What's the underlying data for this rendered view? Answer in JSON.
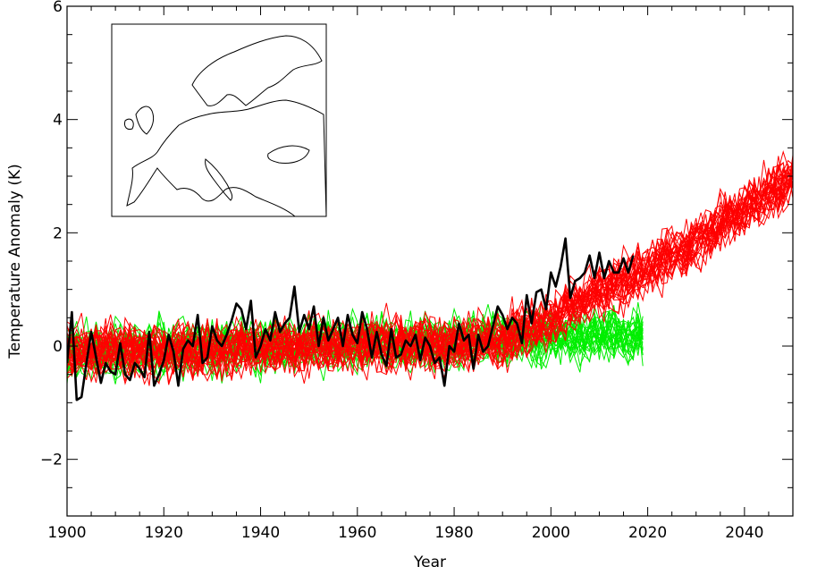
{
  "chart_data": {
    "type": "line",
    "title": "",
    "xlabel": "Year",
    "ylabel": "Temperature Anomaly (K)",
    "xlim": [
      1900,
      2050
    ],
    "ylim": [
      -3,
      6
    ],
    "x_ticks": [
      1900,
      1920,
      1940,
      1960,
      1980,
      2000,
      2020,
      2040
    ],
    "y_ticks": [
      -2,
      0,
      2,
      4,
      6
    ],
    "x_minor_step": 5,
    "y_minor_step": 0.5,
    "grid": false,
    "legend": "none",
    "inset": "map-of-europe-top-left",
    "colors": {
      "simulations": "#ff0000",
      "alternative": "#00ee00",
      "observed": "#000000"
    },
    "series": [
      {
        "role": "observed",
        "color": "#000000",
        "x": [
          1900,
          1901,
          1902,
          1903,
          1904,
          1905,
          1906,
          1907,
          1908,
          1909,
          1910,
          1911,
          1912,
          1913,
          1914,
          1915,
          1916,
          1917,
          1918,
          1919,
          1920,
          1921,
          1922,
          1923,
          1924,
          1925,
          1926,
          1927,
          1928,
          1929,
          1930,
          1931,
          1932,
          1933,
          1934,
          1935,
          1936,
          1937,
          1938,
          1939,
          1940,
          1941,
          1942,
          1943,
          1944,
          1945,
          1946,
          1947,
          1948,
          1949,
          1950,
          1951,
          1952,
          1953,
          1954,
          1955,
          1956,
          1957,
          1958,
          1959,
          1960,
          1961,
          1962,
          1963,
          1964,
          1965,
          1966,
          1967,
          1968,
          1969,
          1970,
          1971,
          1972,
          1973,
          1974,
          1975,
          1976,
          1977,
          1978,
          1979,
          1980,
          1981,
          1982,
          1983,
          1984,
          1985,
          1986,
          1987,
          1988,
          1989,
          1990,
          1991,
          1992,
          1993,
          1994,
          1995,
          1996,
          1997,
          1998,
          1999,
          2000,
          2001,
          2002,
          2003,
          2004,
          2005,
          2006,
          2007,
          2008,
          2009,
          2010,
          2011,
          2012,
          2013,
          2014,
          2015,
          2016,
          2017
        ],
        "y": [
          -0.3,
          0.6,
          -0.95,
          -0.9,
          -0.3,
          0.25,
          -0.2,
          -0.65,
          -0.3,
          -0.45,
          -0.5,
          0.05,
          -0.5,
          -0.6,
          -0.3,
          -0.4,
          -0.55,
          0.25,
          -0.7,
          -0.5,
          -0.25,
          0.2,
          -0.1,
          -0.7,
          -0.05,
          0.1,
          0.0,
          0.55,
          -0.3,
          -0.2,
          0.35,
          0.1,
          0.0,
          0.2,
          0.45,
          0.75,
          0.65,
          0.3,
          0.8,
          -0.2,
          0.0,
          0.3,
          0.1,
          0.6,
          0.25,
          0.4,
          0.5,
          1.05,
          0.25,
          0.55,
          0.3,
          0.7,
          0.0,
          0.5,
          0.1,
          0.3,
          0.5,
          0.0,
          0.55,
          0.2,
          0.05,
          0.6,
          0.3,
          -0.2,
          0.25,
          -0.15,
          -0.35,
          0.3,
          -0.2,
          -0.15,
          0.1,
          0.0,
          0.2,
          -0.25,
          0.15,
          0.0,
          -0.3,
          -0.2,
          -0.7,
          0.0,
          -0.1,
          0.4,
          0.1,
          0.2,
          -0.4,
          0.2,
          -0.1,
          0.0,
          0.35,
          0.7,
          0.55,
          0.3,
          0.5,
          0.4,
          0.05,
          0.9,
          0.4,
          0.95,
          1.0,
          0.65,
          1.3,
          1.05,
          1.4,
          1.9,
          0.85,
          1.15,
          1.2,
          1.3,
          1.6,
          1.2,
          1.65,
          1.2,
          1.5,
          1.3,
          1.3,
          1.55,
          1.3,
          1.6
        ]
      }
    ]
  }
}
